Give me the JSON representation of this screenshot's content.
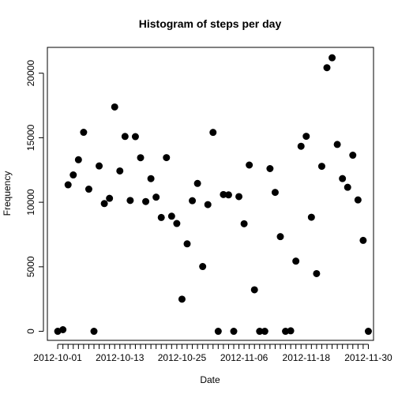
{
  "chart_data": {
    "type": "scatter",
    "title": "Histogram of steps per day",
    "xlabel": "Date",
    "ylabel": "Frequency",
    "x_tick_labels": [
      "2012-10-01",
      "2012-10-13",
      "2012-10-25",
      "2012-11-06",
      "2012-11-18",
      "2012-11-30"
    ],
    "y_ticks": [
      0,
      5000,
      10000,
      15000,
      20000
    ],
    "ylim": [
      -700,
      22000
    ],
    "xlim": [
      "2012-09-29",
      "2012-12-01"
    ],
    "grid": false,
    "legend": "none",
    "marker": "filled-circle",
    "point_color": "#000000",
    "x": [
      "2012-10-01",
      "2012-10-02",
      "2012-10-03",
      "2012-10-04",
      "2012-10-05",
      "2012-10-06",
      "2012-10-07",
      "2012-10-08",
      "2012-10-09",
      "2012-10-10",
      "2012-10-11",
      "2012-10-12",
      "2012-10-13",
      "2012-10-14",
      "2012-10-15",
      "2012-10-16",
      "2012-10-17",
      "2012-10-18",
      "2012-10-19",
      "2012-10-20",
      "2012-10-21",
      "2012-10-22",
      "2012-10-23",
      "2012-10-24",
      "2012-10-25",
      "2012-10-26",
      "2012-10-27",
      "2012-10-28",
      "2012-10-29",
      "2012-10-30",
      "2012-10-31",
      "2012-11-01",
      "2012-11-02",
      "2012-11-03",
      "2012-11-04",
      "2012-11-05",
      "2012-11-06",
      "2012-11-07",
      "2012-11-08",
      "2012-11-09",
      "2012-11-10",
      "2012-11-11",
      "2012-11-12",
      "2012-11-13",
      "2012-11-14",
      "2012-11-15",
      "2012-11-16",
      "2012-11-17",
      "2012-11-18",
      "2012-11-19",
      "2012-11-20",
      "2012-11-21",
      "2012-11-22",
      "2012-11-23",
      "2012-11-24",
      "2012-11-25",
      "2012-11-26",
      "2012-11-27",
      "2012-11-28",
      "2012-11-29",
      "2012-11-30"
    ],
    "y": [
      0,
      126,
      11352,
      12116,
      13294,
      15420,
      11015,
      0,
      12811,
      9900,
      10304,
      17382,
      12426,
      15098,
      10139,
      15084,
      13452,
      10056,
      11829,
      10395,
      8821,
      13460,
      8918,
      8355,
      2492,
      6778,
      10119,
      11458,
      5018,
      9819,
      15414,
      0,
      10600,
      10571,
      0,
      10439,
      8334,
      12883,
      3219,
      0,
      0,
      12608,
      10765,
      7336,
      0,
      41,
      5441,
      14339,
      15110,
      8841,
      4472,
      12787,
      20427,
      21194,
      14478,
      11834,
      11162,
      13646,
      10183,
      7047,
      0
    ]
  }
}
